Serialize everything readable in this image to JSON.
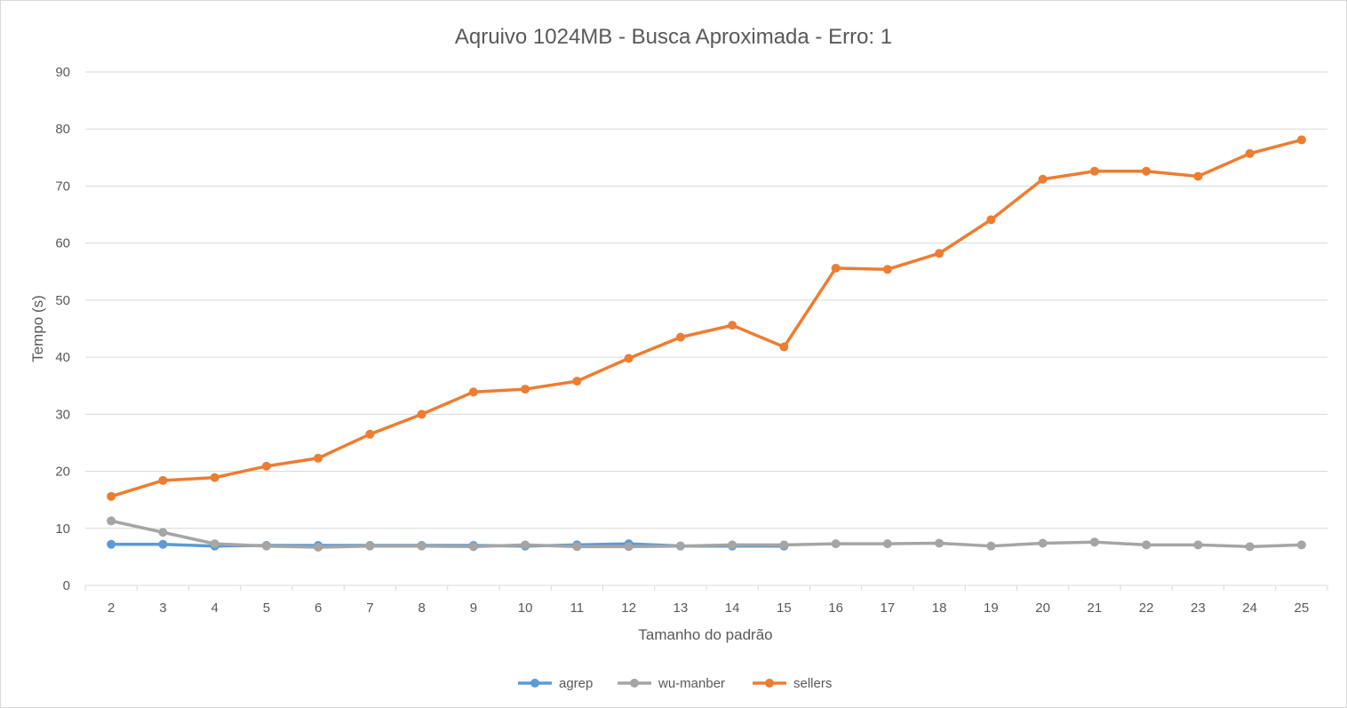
{
  "chart_data": {
    "type": "line",
    "title": "Aqruivo 1024MB - Busca Aproximada - Erro: 1",
    "xlabel": "Tamanho do padrão",
    "ylabel": "Tempo (s)",
    "categories": [
      "2",
      "3",
      "4",
      "5",
      "6",
      "7",
      "8",
      "9",
      "10",
      "11",
      "12",
      "13",
      "14",
      "15",
      "16",
      "17",
      "18",
      "19",
      "20",
      "21",
      "22",
      "23",
      "24",
      "25"
    ],
    "ylim": [
      0,
      90
    ],
    "yticks": [
      0,
      10,
      20,
      30,
      40,
      50,
      60,
      70,
      80,
      90
    ],
    "grid": true,
    "legend_position": "bottom",
    "series": [
      {
        "name": "agrep",
        "color": "#5b9bd5",
        "values": [
          7.2,
          7.2,
          6.9,
          7.0,
          7.0,
          7.0,
          7.0,
          7.0,
          6.9,
          7.1,
          7.3,
          6.9,
          6.9,
          6.9,
          null,
          null,
          null,
          null,
          null,
          null,
          null,
          null,
          null,
          null
        ]
      },
      {
        "name": "wu-manber",
        "color": "#a5a5a5",
        "values": [
          11.3,
          9.3,
          7.3,
          6.9,
          6.7,
          6.9,
          6.9,
          6.8,
          7.1,
          6.8,
          6.8,
          6.9,
          7.1,
          7.1,
          7.3,
          7.3,
          7.4,
          6.9,
          7.4,
          7.6,
          7.1,
          7.1,
          6.8,
          7.1
        ]
      },
      {
        "name": "sellers",
        "color": "#ed7d31",
        "values": [
          15.6,
          18.4,
          18.9,
          20.9,
          22.3,
          26.5,
          30.0,
          33.9,
          34.4,
          35.8,
          39.8,
          43.5,
          45.6,
          41.8,
          55.6,
          55.4,
          58.2,
          64.1,
          71.2,
          72.6,
          72.6,
          71.7,
          75.7,
          78.1
        ]
      }
    ]
  }
}
